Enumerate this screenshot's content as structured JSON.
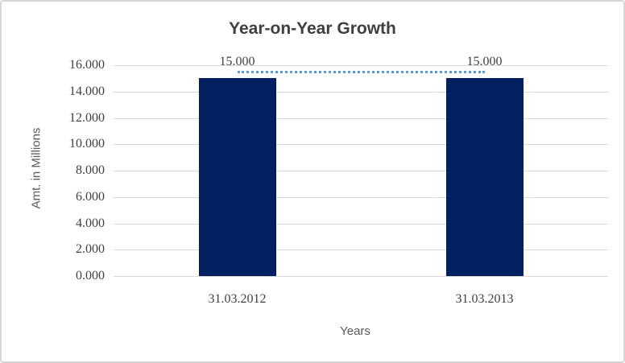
{
  "chart_data": {
    "type": "bar",
    "title": "Year-on-Year Growth",
    "xlabel": "Years",
    "ylabel": "Amt. in Millions",
    "categories": [
      "31.03.2012",
      "31.03.2013"
    ],
    "values": [
      15000,
      15000
    ],
    "value_labels": [
      "15.000",
      "15.000"
    ],
    "y_ticks": {
      "values": [
        0,
        2000,
        4000,
        6000,
        8000,
        10000,
        12000,
        14000,
        16000
      ],
      "labels": [
        "0.000",
        "2.000",
        "4.000",
        "6.000",
        "8.000",
        "10.000",
        "12.000",
        "14.000",
        "16.000"
      ]
    },
    "ylim": [
      0,
      16000
    ],
    "grid": true,
    "legend": "none",
    "trend_line": {
      "style": "dotted",
      "values": [
        15000,
        15000
      ]
    },
    "colors": {
      "bar": "#002060",
      "trend_line": "#5B9BD5",
      "gridline": "#D9D9D9",
      "title_text": "#3F3F3F",
      "tick_text": "#404040",
      "axis_title_text": "#595959"
    }
  }
}
